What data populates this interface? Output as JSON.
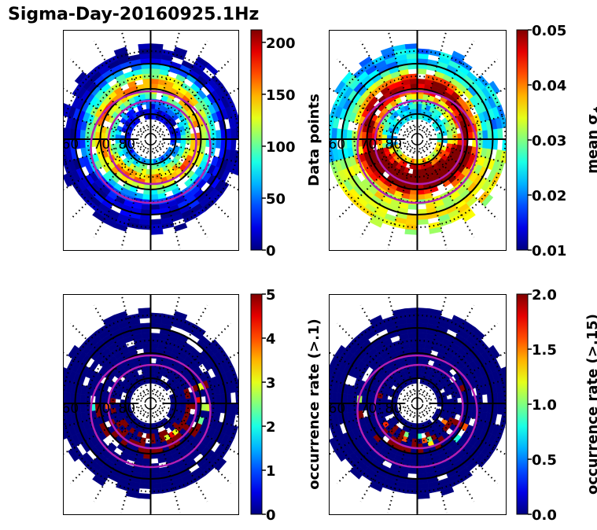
{
  "figure": {
    "title": "Sigma-Day-20160925.1Hz"
  },
  "chart_data": [
    {
      "type": "heatmap",
      "projection": "polar-dial",
      "title": "",
      "lat_labels": [
        "60",
        "70",
        "80"
      ],
      "lat_circles": [
        60,
        70,
        80
      ],
      "lat_dotted": [
        55,
        65,
        75,
        85
      ],
      "colormap": "jet",
      "colorbar": {
        "label": "Data points",
        "min": 0,
        "max": 212,
        "ticks": [
          "0",
          "50",
          "100",
          "150",
          "200"
        ],
        "tick_values": [
          0,
          50,
          100,
          150,
          200
        ]
      },
      "field": "data_points",
      "oval_color": "#b31fb3"
    },
    {
      "type": "heatmap",
      "projection": "polar-dial",
      "title": "",
      "lat_labels": [
        "60",
        "70",
        "80"
      ],
      "lat_circles": [
        60,
        70,
        80
      ],
      "lat_dotted": [
        55,
        65,
        75,
        85
      ],
      "colormap": "jet",
      "colorbar": {
        "label": "mean σ",
        "label_sub": "ϕ",
        "min": 0.01,
        "max": 0.05,
        "ticks": [
          "0.01",
          "0.02",
          "0.03",
          "0.04",
          "0.05"
        ],
        "tick_values": [
          0.01,
          0.02,
          0.03,
          0.04,
          0.05
        ]
      },
      "field": "mean_sigma_phi",
      "oval_color": "#b31fb3"
    },
    {
      "type": "heatmap",
      "projection": "polar-dial",
      "title": "",
      "lat_labels": [
        "60",
        "70",
        "80"
      ],
      "lat_circles": [
        60,
        70,
        80
      ],
      "lat_dotted": [
        55,
        65,
        75,
        85
      ],
      "colormap": "jet",
      "colorbar": {
        "label": "occurrence rate (>.1)",
        "min": 0,
        "max": 5,
        "ticks": [
          "0",
          "1",
          "2",
          "3",
          "4",
          "5"
        ],
        "tick_values": [
          0,
          1,
          2,
          3,
          4,
          5
        ]
      },
      "field": "occurrence_rate_gt_0.1",
      "oval_color": "#b31fb3"
    },
    {
      "type": "heatmap",
      "projection": "polar-dial",
      "title": "",
      "lat_labels": [
        "60",
        "70",
        "80"
      ],
      "lat_circles": [
        60,
        70,
        80
      ],
      "lat_dotted": [
        55,
        65,
        75,
        85
      ],
      "colormap": "jet",
      "colorbar": {
        "label": "occurrence rate (>.15)",
        "min": 0,
        "max": 2,
        "ticks": [
          "0.0",
          "0.5",
          "1.0",
          "1.5",
          "2.0"
        ],
        "tick_values": [
          0,
          0.5,
          1.0,
          1.5,
          2.0
        ]
      },
      "field": "occurrence_rate_gt_0.15",
      "oval_color": "#b31fb3"
    }
  ]
}
